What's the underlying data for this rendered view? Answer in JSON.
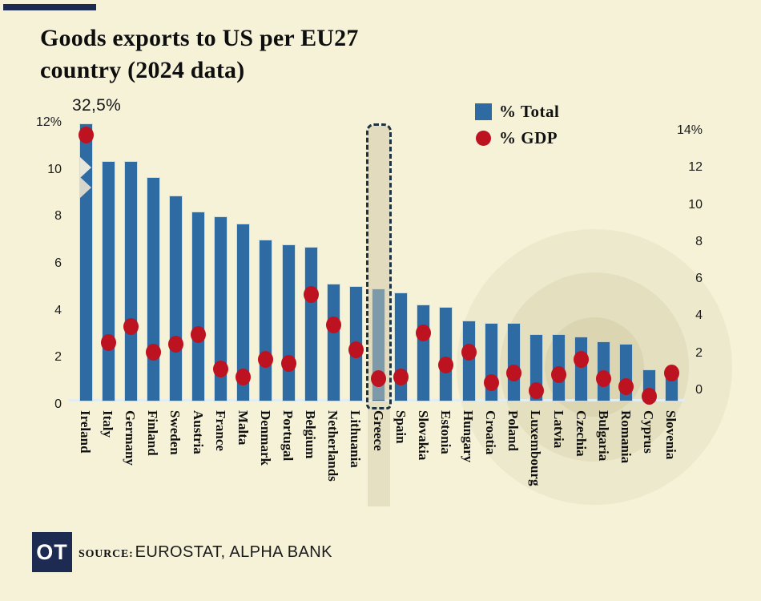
{
  "header": {
    "title_line1": "Goods exports to US per EU27",
    "title_line2": "country (2024 data)"
  },
  "legend": {
    "items": [
      {
        "swatch": "square",
        "label": "%  Total",
        "color": "#2e6ba3"
      },
      {
        "swatch": "circle",
        "label": "%  GDP",
        "color": "#bd1220"
      }
    ]
  },
  "chart_data": {
    "type": "bar",
    "title": "Goods exports to US per EU27 country (2024 data)",
    "categories": [
      "Ireland",
      "Italy",
      "Germany",
      "Finland",
      "Sweden",
      "Austria",
      "France",
      "Malta",
      "Denmark",
      "Portugal",
      "Belgium",
      "Netherlands",
      "Lithuania",
      "Greece",
      "Spain",
      "Slovakia",
      "Estonia",
      "Hungary",
      "Croatia",
      "Poland",
      "Luxembourg",
      "Latvia",
      "Czechia",
      "Bulgaria",
      "Romania",
      "Cyprus",
      "Slovenia"
    ],
    "series": [
      {
        "name": "% Total",
        "type": "bar",
        "axis": "left",
        "values": [
          32.5,
          10.3,
          10.3,
          9.6,
          8.8,
          8.1,
          7.9,
          7.6,
          6.9,
          6.7,
          6.6,
          5.0,
          4.9,
          4.8,
          4.6,
          4.1,
          4.0,
          3.4,
          3.3,
          3.3,
          2.8,
          2.8,
          2.7,
          2.5,
          2.4,
          1.3,
          1.3
        ]
      },
      {
        "name": "% GDP",
        "type": "scatter",
        "axis": "right",
        "values": [
          13.8,
          3.0,
          3.8,
          2.5,
          2.9,
          3.4,
          1.6,
          1.2,
          2.1,
          1.9,
          5.5,
          3.9,
          2.6,
          1.1,
          1.2,
          3.5,
          1.8,
          2.5,
          0.9,
          1.4,
          0.5,
          1.3,
          2.1,
          1.1,
          0.7,
          0.2,
          1.4
        ]
      }
    ],
    "left_axis": {
      "range": [
        0,
        12
      ],
      "ticks": [
        "12%",
        "10",
        "8",
        "6",
        "4",
        "2",
        "0"
      ]
    },
    "right_axis": {
      "range": [
        0,
        14
      ],
      "ticks": [
        "14%",
        "12",
        "10",
        "8",
        "6",
        "4",
        "2",
        "0"
      ]
    },
    "annotations": [
      {
        "category": "Ireland",
        "text": "32,5%",
        "note": "bar truncated with axis break"
      }
    ],
    "highlight": {
      "category": "Greece"
    },
    "grid": false,
    "legend_position": "top-right"
  },
  "footer": {
    "logo_text": "OT",
    "source_label": "SOURCE:",
    "source_text": "EUROSTAT, ALPHA BANK"
  },
  "colors": {
    "background": "#f5f2d8",
    "bar": "#2e6ba3",
    "dot": "#bd1220",
    "accent_navy": "#1d2a52",
    "highlight_fill": "#e6e0c3",
    "highlight_border": "#1e333f",
    "baseline": "#e2edf2"
  }
}
